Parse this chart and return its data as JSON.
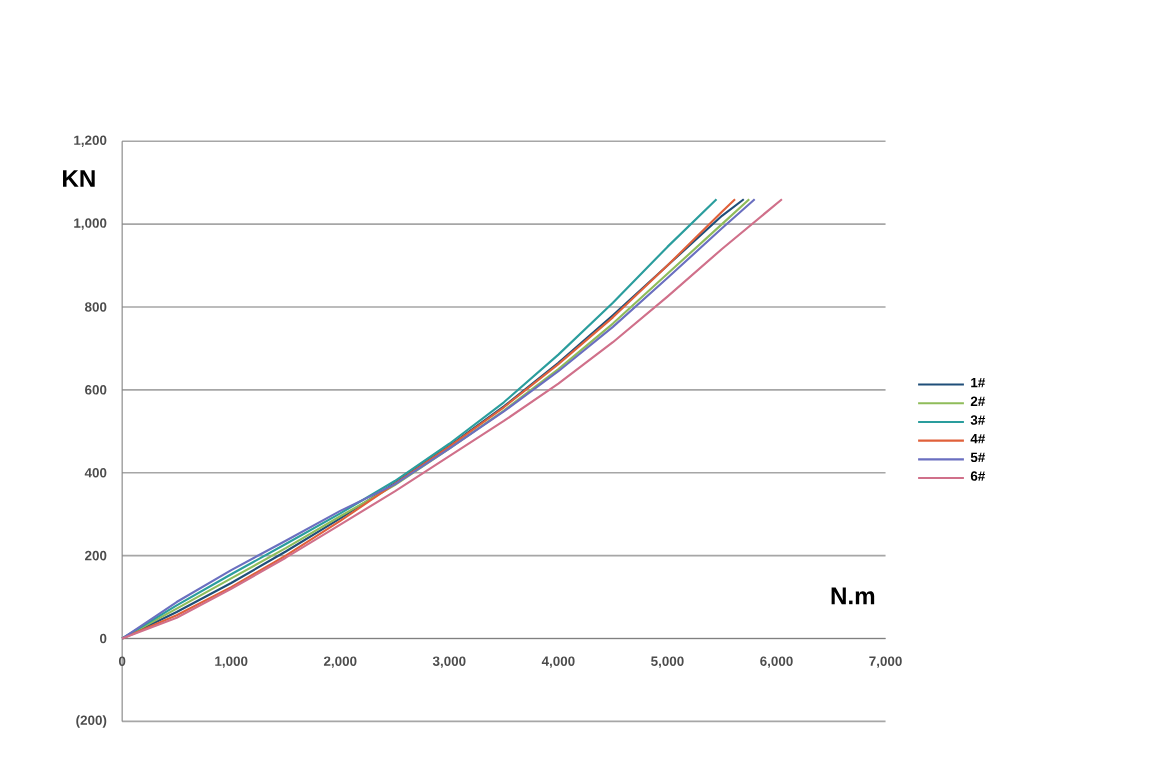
{
  "chart_data": {
    "type": "line",
    "xlabel": "N.m",
    "ylabel": "KN",
    "xlim": [
      0,
      7000
    ],
    "ylim": [
      -200,
      1200
    ],
    "xticks": [
      {
        "value": 0,
        "label": "0"
      },
      {
        "value": 1000,
        "label": "1,000"
      },
      {
        "value": 2000,
        "label": "2,000"
      },
      {
        "value": 3000,
        "label": "3,000"
      },
      {
        "value": 4000,
        "label": "4,000"
      },
      {
        "value": 5000,
        "label": "5,000"
      },
      {
        "value": 6000,
        "label": "6,000"
      },
      {
        "value": 7000,
        "label": "7,000"
      }
    ],
    "yticks": [
      {
        "value": -200,
        "label": "(200)"
      },
      0,
      200,
      400,
      600,
      800,
      {
        "value": 1000,
        "label": "1,000"
      },
      {
        "value": 1200,
        "label": "1,200"
      }
    ],
    "grid": "y",
    "legend": "right",
    "marker": "none",
    "line_style": "solid",
    "series": [
      {
        "name": "1#",
        "color": "#1f4e79",
        "x": [
          0,
          500,
          1000,
          1500,
          2000,
          2500,
          3000,
          3500,
          4000,
          4500,
          5000,
          5500,
          5700
        ],
        "values": [
          0,
          64,
          134,
          210,
          290,
          375,
          465,
          560,
          665,
          780,
          900,
          1020,
          1060
        ]
      },
      {
        "name": "2#",
        "color": "#8fbc5a",
        "x": [
          0,
          500,
          1000,
          1500,
          2000,
          2500,
          3000,
          3500,
          4000,
          4500,
          5000,
          5500,
          5750
        ],
        "values": [
          0,
          72,
          145,
          218,
          295,
          370,
          458,
          550,
          650,
          760,
          880,
          1000,
          1060
        ]
      },
      {
        "name": "3#",
        "color": "#2a9d9d",
        "x": [
          0,
          500,
          1000,
          1500,
          2000,
          2500,
          3000,
          3500,
          4000,
          4500,
          5000,
          5450
        ],
        "values": [
          0,
          80,
          155,
          228,
          302,
          380,
          470,
          570,
          685,
          810,
          945,
          1060
        ]
      },
      {
        "name": "4#",
        "color": "#e0603a",
        "x": [
          0,
          500,
          1000,
          1500,
          2000,
          2500,
          3000,
          3500,
          4000,
          4500,
          5000,
          5500,
          5620
        ],
        "values": [
          0,
          56,
          124,
          200,
          284,
          373,
          463,
          558,
          662,
          775,
          900,
          1030,
          1060
        ]
      },
      {
        "name": "5#",
        "color": "#6a6fc0",
        "x": [
          0,
          500,
          1000,
          1500,
          2000,
          2500,
          3000,
          3500,
          4000,
          4500,
          5000,
          5500,
          5800
        ],
        "values": [
          0,
          88,
          165,
          236,
          308,
          372,
          458,
          548,
          645,
          752,
          870,
          990,
          1060
        ]
      },
      {
        "name": "6#",
        "color": "#d0708a",
        "x": [
          0,
          500,
          1000,
          1500,
          2000,
          2500,
          3000,
          3500,
          4000,
          4500,
          5000,
          5500,
          6050
        ],
        "values": [
          0,
          50,
          120,
          195,
          275,
          355,
          440,
          525,
          615,
          715,
          825,
          940,
          1060
        ]
      }
    ]
  }
}
